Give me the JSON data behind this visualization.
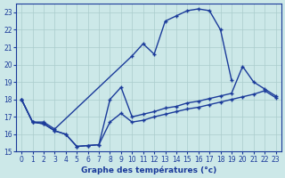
{
  "bg_color": "#cce8e8",
  "grid_color": "#aacccc",
  "line_color": "#1a3a9a",
  "xlabel": "Graphe des températures (°c)",
  "xlim": [
    -0.5,
    23.5
  ],
  "ylim": [
    15,
    23.5
  ],
  "yticks": [
    15,
    16,
    17,
    18,
    19,
    20,
    21,
    22,
    23
  ],
  "xticks": [
    0,
    1,
    2,
    3,
    4,
    5,
    6,
    7,
    8,
    9,
    10,
    11,
    12,
    13,
    14,
    15,
    16,
    17,
    18,
    19,
    20,
    21,
    22,
    23
  ],
  "line1_x": [
    0,
    1,
    2,
    3,
    10,
    11,
    12,
    13,
    14,
    15,
    16,
    17,
    18,
    19
  ],
  "line1_y": [
    18.0,
    16.7,
    16.7,
    16.3,
    20.5,
    21.2,
    20.6,
    22.5,
    22.8,
    23.1,
    23.2,
    23.1,
    22.0,
    19.1
  ],
  "line2_x": [
    0,
    1,
    2,
    3,
    4,
    5,
    6,
    7,
    8,
    9,
    10,
    11,
    12,
    13,
    14,
    15,
    16,
    17,
    18,
    19,
    20,
    21,
    22,
    23
  ],
  "line2_y": [
    18.0,
    16.7,
    16.6,
    16.2,
    16.0,
    15.3,
    15.35,
    15.4,
    18.0,
    18.7,
    17.0,
    17.15,
    17.3,
    17.5,
    17.6,
    17.8,
    17.9,
    18.05,
    18.2,
    18.35,
    19.9,
    19.0,
    18.6,
    18.2
  ],
  "line3_x": [
    0,
    1,
    2,
    3,
    4,
    5,
    6,
    7,
    8,
    9,
    10,
    11,
    12,
    13,
    14,
    15,
    16,
    17,
    18,
    19,
    20,
    21,
    22,
    23
  ],
  "line3_y": [
    18.0,
    16.7,
    16.6,
    16.2,
    16.0,
    15.3,
    15.35,
    15.4,
    16.7,
    17.2,
    16.7,
    16.8,
    17.0,
    17.15,
    17.3,
    17.45,
    17.55,
    17.7,
    17.85,
    18.0,
    18.15,
    18.3,
    18.5,
    18.1
  ]
}
